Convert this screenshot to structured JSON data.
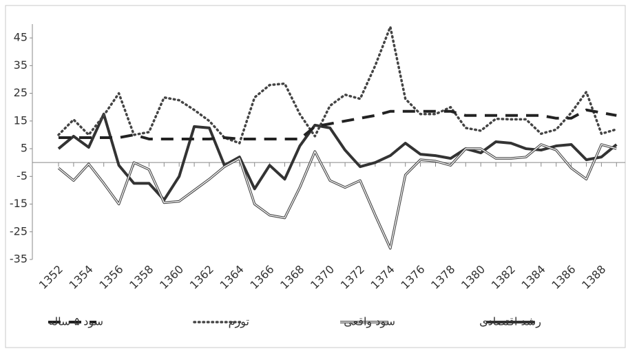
{
  "chart_data": {
    "type": "line",
    "categories": [
      "1352",
      null,
      "1354",
      null,
      "1356",
      null,
      "1358",
      null,
      "1360",
      null,
      "1362",
      null,
      "1364",
      null,
      "1366",
      null,
      "1368",
      null,
      "1370",
      null,
      "1372",
      null,
      "1374",
      null,
      "1376",
      null,
      "1378",
      null,
      "1380",
      null,
      "1382",
      null,
      "1384",
      null,
      "1386",
      null,
      "1388",
      null
    ],
    "ylim": [
      -35,
      50
    ],
    "yticks": [
      -35,
      -25,
      -15,
      -5,
      5,
      15,
      25,
      35,
      45
    ],
    "grid": false,
    "legend": "bottom",
    "series": [
      {
        "name": "رشد اقتصادی",
        "color": "#333333",
        "style": "solid",
        "values": [
          5,
          9.5,
          5.5,
          17.5,
          -1,
          -7.5,
          -7.5,
          -13.5,
          -5,
          13,
          12.5,
          -1,
          2,
          -9.5,
          -1,
          -6,
          6,
          13.5,
          12.5,
          4.5,
          -1.5,
          0,
          2.5,
          7,
          3,
          2.5,
          1.5,
          5,
          3.5,
          7.5,
          7,
          5,
          4.5,
          6,
          6.5,
          1,
          2,
          6.5
        ]
      },
      {
        "name": "سود واقعی",
        "color": "#444444",
        "style": "double",
        "values": [
          -2,
          -6.5,
          -0.5,
          -7.5,
          -15,
          0,
          -2.5,
          -14.5,
          -14,
          -10,
          -6,
          -1.5,
          1.5,
          -15,
          -19,
          -20,
          -9,
          4,
          -6.5,
          -9,
          -6.5,
          -19,
          -31,
          -4.5,
          1,
          0.5,
          -1,
          5,
          5,
          1.5,
          1.5,
          2,
          6.5,
          4.5,
          -2,
          -6,
          6.5,
          5
        ]
      },
      {
        "name": "تورم",
        "color": "#444444",
        "style": "dotted",
        "values": [
          10,
          15.5,
          10,
          17,
          25,
          10,
          11,
          23.5,
          22.5,
          19,
          15,
          9,
          7,
          23.5,
          28,
          28.5,
          17.5,
          9.5,
          20.5,
          24.5,
          23,
          35,
          49,
          23,
          17.5,
          17.5,
          20,
          12.5,
          11.5,
          15.8,
          15.6,
          15.6,
          10.4,
          11.9,
          18,
          25.5,
          10.4,
          12
        ]
      },
      {
        "name": "سود ۵ ساله",
        "color": "#222222",
        "style": "dashed",
        "values": [
          9,
          9,
          9,
          9,
          9,
          10,
          8.5,
          8.5,
          8.5,
          8.5,
          8.5,
          9,
          8.5,
          8.5,
          8.5,
          8.5,
          8.5,
          13,
          14,
          15,
          16,
          17,
          18.5,
          18.5,
          18.5,
          18.5,
          18.5,
          17,
          17,
          17,
          17,
          17,
          17,
          16,
          16,
          19,
          18,
          17
        ]
      }
    ]
  }
}
